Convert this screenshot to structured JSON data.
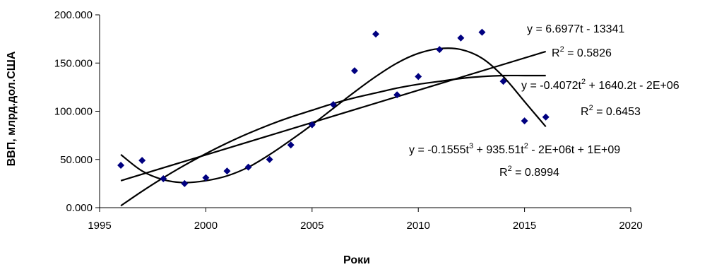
{
  "chart_data": {
    "type": "scatter",
    "title": "",
    "xlabel": "Роки",
    "ylabel": "ВВП, млрд.дол.США",
    "xlim": [
      1995,
      2020
    ],
    "ylim": [
      0,
      200
    ],
    "x_ticks": [
      1995,
      2000,
      2005,
      2010,
      2015,
      2020
    ],
    "y_ticks": [
      0,
      50,
      100,
      150,
      200
    ],
    "x_tick_labels": [
      "1995",
      "2000",
      "2005",
      "2010",
      "2015",
      "2020"
    ],
    "y_tick_labels": [
      "0.000",
      "50.000",
      "100.000",
      "150.000",
      "200.000"
    ],
    "grid": false,
    "legend": "none",
    "marker_color": "#000080",
    "line_color": "#000000",
    "points": {
      "x": [
        1996,
        1997,
        1998,
        1999,
        2000,
        2001,
        2002,
        2003,
        2004,
        2005,
        2006,
        2007,
        2008,
        2009,
        2010,
        2011,
        2012,
        2013,
        2014,
        2015,
        2016
      ],
      "y": [
        44,
        49,
        30,
        25,
        31,
        38,
        42,
        50,
        65,
        86,
        107,
        142,
        180,
        117,
        136,
        164,
        176,
        182,
        131,
        90,
        94
      ]
    },
    "trendlines": [
      {
        "kind": "linear",
        "x": [
          1996,
          2016
        ],
        "y": [
          28,
          162
        ],
        "equation": {
          "lhs": "y = 6.6977t - 13341",
          "parts": []
        },
        "r2": {
          "base": "R",
          "exp": "2",
          "rest": " = 0.5826"
        }
      },
      {
        "kind": "quadratic",
        "x": [
          1996,
          1997,
          1998,
          1999,
          2000,
          2001,
          2002,
          2003,
          2004,
          2005,
          2006,
          2007,
          2008,
          2009,
          2010,
          2011,
          2012,
          2013,
          2014,
          2015,
          2016
        ],
        "y": [
          2,
          17,
          31,
          44,
          56,
          67,
          77,
          86,
          94,
          101,
          108,
          114,
          119,
          124,
          128,
          131,
          134,
          136,
          137,
          137,
          137
        ],
        "equation": {
          "lhs": "y = -0.4072t",
          "parts": [
            {
              "sup": "2"
            },
            {
              "text": " + 1640.2t - 2E+06"
            }
          ]
        },
        "r2": {
          "base": "R",
          "exp": "2",
          "rest": " = 0.6453"
        }
      },
      {
        "kind": "cubic",
        "x": [
          1996,
          1997,
          1998,
          1999,
          2000,
          2001,
          2002,
          2003,
          2004,
          2005,
          2006,
          2007,
          2008,
          2009,
          2010,
          2011,
          2012,
          2013,
          2014,
          2015,
          2016
        ],
        "y": [
          55,
          38,
          29,
          26,
          28,
          33,
          42,
          55,
          70,
          86,
          103,
          120,
          136,
          150,
          160,
          165,
          164,
          155,
          136,
          110,
          84
        ],
        "equation": {
          "lhs": "y = -0.1555t",
          "parts": [
            {
              "sup": "3"
            },
            {
              "text": " + 935.51t"
            },
            {
              "sup": "2"
            },
            {
              "text": " - 2E+06t + 1E+09"
            }
          ]
        },
        "r2": {
          "base": "R",
          "exp": "2",
          "rest": " = 0.8994"
        }
      }
    ]
  }
}
